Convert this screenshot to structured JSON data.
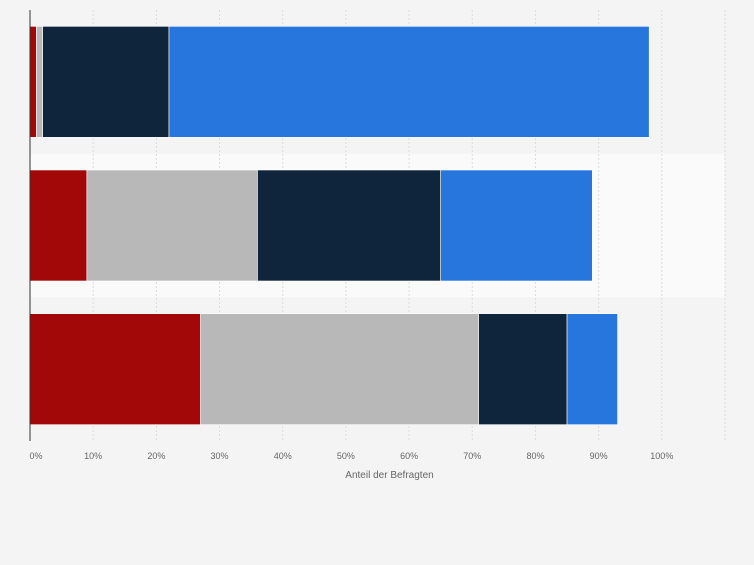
{
  "chart_data": {
    "type": "bar",
    "orientation": "horizontal",
    "stacked": true,
    "categories": [
      "",
      "",
      ""
    ],
    "series": [
      {
        "color": "#a20808",
        "values": [
          1,
          9,
          27
        ]
      },
      {
        "color": "#b8b8b8",
        "values": [
          1,
          27,
          44
        ]
      },
      {
        "color": "#0f253b",
        "values": [
          20,
          29,
          14
        ]
      },
      {
        "color": "#2776dd",
        "values": [
          76,
          24,
          8
        ]
      }
    ],
    "xlabel": "Anteil der Befragten",
    "ylabel": "",
    "xlim": [
      0,
      110
    ],
    "xticks": [
      {
        "value": 0,
        "label": "0%"
      },
      {
        "value": 10,
        "label": "10%"
      },
      {
        "value": 20,
        "label": "20%"
      },
      {
        "value": 30,
        "label": "30%"
      },
      {
        "value": 40,
        "label": "40%"
      },
      {
        "value": 50,
        "label": "50%"
      },
      {
        "value": 60,
        "label": "60%"
      },
      {
        "value": 70,
        "label": "70%"
      },
      {
        "value": 80,
        "label": "80%"
      },
      {
        "value": 90,
        "label": "90%"
      },
      {
        "value": 100,
        "label": "100%"
      }
    ],
    "grid": true,
    "legend": "none",
    "highlighted_row": 1
  }
}
